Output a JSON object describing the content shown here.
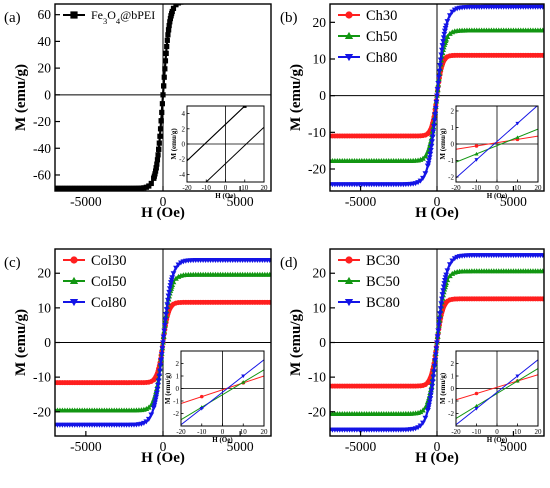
{
  "chart_data": [
    {
      "panel": "(a)",
      "type": "line",
      "xlabel": "H (Oe)",
      "ylabel": "M (emu/g)",
      "xlim": [
        -7000,
        7000
      ],
      "ylim": [
        -72,
        68
      ],
      "xticks": [
        -5000,
        0,
        5000
      ],
      "yticks": [
        -60,
        -40,
        -20,
        0,
        20,
        40,
        60
      ],
      "legend_position": "top-left",
      "series": [
        {
          "name": "Fe3O4@bPEI",
          "color": "#000000",
          "marker": "square",
          "Ms": 70,
          "Hsat": 420
        }
      ],
      "inset": {
        "xlim": [
          -20,
          20
        ],
        "ylim": [
          -5,
          5
        ],
        "xticks": [
          -20,
          -10,
          0,
          10,
          20
        ],
        "yticks": [
          -4,
          -2,
          0,
          2,
          4
        ],
        "xlabel": "H (Oe)",
        "ylabel": "M (emu/g)",
        "lines": [
          {
            "color": "#000000",
            "hc": 10.8,
            "slope": 0.24,
            "offset": -1.4
          },
          {
            "color": "#000000",
            "hc": 10.8,
            "slope": 0.24,
            "offset": 1.4
          }
        ]
      }
    },
    {
      "panel": "(b)",
      "type": "line",
      "xlabel": "H (Oe)",
      "ylabel": "M (emu/g)",
      "xlim": [
        -7000,
        7000
      ],
      "ylim": [
        -26,
        25
      ],
      "xticks": [
        -5000,
        0,
        5000
      ],
      "yticks": [
        -20,
        -10,
        0,
        10,
        20
      ],
      "legend_position": "top-left",
      "series": [
        {
          "name": "Ch30",
          "color": "#ff1f1f",
          "marker": "circle",
          "Ms": 11.0,
          "Hsat": 340
        },
        {
          "name": "Ch50",
          "color": "#129612",
          "marker": "triangle-up",
          "Ms": 17.8,
          "Hsat": 460
        },
        {
          "name": "Ch80",
          "color": "#1414e6",
          "marker": "triangle-down",
          "Ms": 24.2,
          "Hsat": 560
        }
      ],
      "inset": {
        "xlim": [
          -20,
          20
        ],
        "ylim": [
          -2.3,
          2.3
        ],
        "xticks": [
          -20,
          -10,
          0,
          10,
          20
        ],
        "yticks": [
          -2,
          -1,
          0,
          1,
          2
        ],
        "xlabel": "H (Oe)",
        "ylabel": "M (emu/g)",
        "lines": [
          {
            "color": "#ff1f1f",
            "slope": 0.02,
            "offset": 0.08
          },
          {
            "color": "#129612",
            "slope": 0.05,
            "offset": -0.1
          },
          {
            "color": "#1414e6",
            "slope": 0.11,
            "offset": 0.15
          }
        ]
      }
    },
    {
      "panel": "(c)",
      "type": "line",
      "xlabel": "H (Oe)",
      "ylabel": "M (emu/g)",
      "xlim": [
        -7000,
        7000
      ],
      "ylim": [
        -27,
        27
      ],
      "xticks": [
        -5000,
        0,
        5000
      ],
      "yticks": [
        -20,
        -10,
        0,
        10,
        20
      ],
      "legend_position": "top-left",
      "series": [
        {
          "name": "Col30",
          "color": "#ff1f1f",
          "marker": "circle",
          "Ms": 11.6,
          "Hsat": 360
        },
        {
          "name": "Col50",
          "color": "#129612",
          "marker": "triangle-up",
          "Ms": 19.6,
          "Hsat": 480
        },
        {
          "name": "Col80",
          "color": "#1414e6",
          "marker": "triangle-down",
          "Ms": 23.8,
          "Hsat": 560
        }
      ],
      "inset": {
        "xlim": [
          -20,
          20
        ],
        "ylim": [
          -3,
          3
        ],
        "xticks": [
          -20,
          -10,
          0,
          10,
          20
        ],
        "yticks": [
          -2,
          -1,
          0,
          1,
          2
        ],
        "xlabel": "H (Oe)",
        "ylabel": "M (emu/g)",
        "lines": [
          {
            "color": "#ff1f1f",
            "slope": 0.055,
            "offset": -0.1
          },
          {
            "color": "#129612",
            "slope": 0.1,
            "offset": -0.5
          },
          {
            "color": "#1414e6",
            "slope": 0.13,
            "offset": -0.3
          }
        ]
      }
    },
    {
      "panel": "(d)",
      "type": "line",
      "xlabel": "H (Oe)",
      "ylabel": "M (emu/g)",
      "xlim": [
        -7000,
        7000
      ],
      "ylim": [
        -27,
        27
      ],
      "xticks": [
        -5000,
        0,
        5000
      ],
      "yticks": [
        -20,
        -10,
        0,
        10,
        20
      ],
      "legend_position": "top-left",
      "series": [
        {
          "name": "BC30",
          "color": "#ff1f1f",
          "marker": "circle",
          "Ms": 12.6,
          "Hsat": 380
        },
        {
          "name": "BC50",
          "color": "#129612",
          "marker": "triangle-up",
          "Ms": 20.6,
          "Hsat": 500
        },
        {
          "name": "BC80",
          "color": "#1414e6",
          "marker": "triangle-down",
          "Ms": 25.2,
          "Hsat": 580
        }
      ],
      "inset": {
        "xlim": [
          -20,
          20
        ],
        "ylim": [
          -3,
          3
        ],
        "xticks": [
          -20,
          -10,
          0,
          10,
          20
        ],
        "yticks": [
          -2,
          -1,
          0,
          1,
          2
        ],
        "xlabel": "H (Oe)",
        "ylabel": "M (emu/g)",
        "lines": [
          {
            "color": "#ff1f1f",
            "slope": 0.05,
            "offset": 0.1
          },
          {
            "color": "#129612",
            "slope": 0.1,
            "offset": -0.4
          },
          {
            "color": "#1414e6",
            "slope": 0.13,
            "offset": -0.3
          }
        ]
      }
    }
  ]
}
